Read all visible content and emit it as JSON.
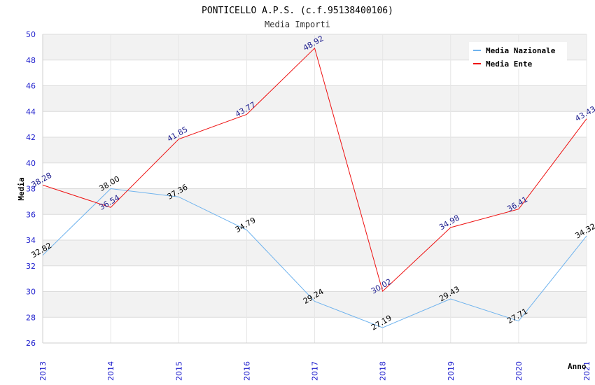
{
  "chart_data": {
    "type": "line",
    "title": "PONTICELLO A.P.S. (c.f.95138400106)",
    "subtitle": "Media Importi",
    "xlabel": "Anno",
    "ylabel": "Media",
    "categories": [
      "2013",
      "2014",
      "2015",
      "2016",
      "2017",
      "2018",
      "2019",
      "2020",
      "2021"
    ],
    "ylim": [
      26,
      50
    ],
    "yticks": [
      "26",
      "28",
      "30",
      "32",
      "34",
      "36",
      "38",
      "40",
      "42",
      "44",
      "46",
      "48",
      "50"
    ],
    "legend_position": "top-right",
    "series": [
      {
        "name": "Media Nazionale",
        "color": "#6fb3ee",
        "label_color": "#000000",
        "values": [
          32.82,
          38.0,
          37.36,
          34.79,
          29.24,
          27.19,
          29.43,
          27.71,
          34.32
        ],
        "labels": [
          "32.82",
          "38.00",
          "37.36",
          "34.79",
          "29.24",
          "27.19",
          "29.43",
          "27.71",
          "34.32"
        ]
      },
      {
        "name": "Media Ente",
        "color": "#ee1111",
        "label_color": "#1a1a8c",
        "values": [
          38.28,
          36.54,
          41.85,
          43.77,
          48.92,
          30.02,
          34.98,
          36.41,
          43.43
        ],
        "labels": [
          "38.28",
          "36.54",
          "41.85",
          "43.77",
          "48.92",
          "30.02",
          "34.98",
          "36.41",
          "43.43"
        ]
      }
    ]
  }
}
